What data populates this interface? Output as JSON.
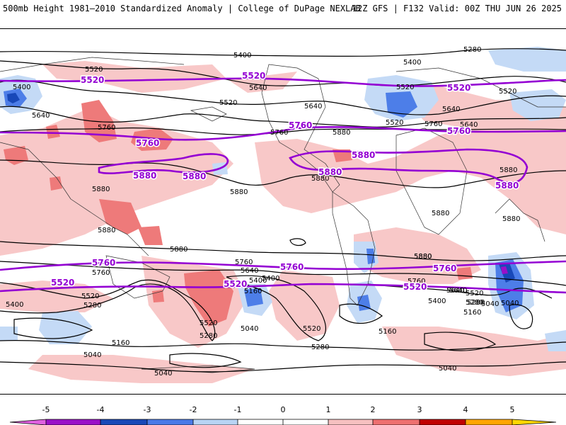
{
  "header": {
    "title": "500mb Height 1981–2010 Standardized Anomaly | College of DuPage NEXLAB",
    "run_info": "12Z GFS | F132 Valid: 00Z THU JUN 26 2025"
  },
  "map": {
    "black_contour_labels": [
      "5400",
      "5520",
      "5400",
      "5640",
      "5520",
      "5640",
      "5760",
      "5880",
      "5880",
      "5880",
      "5880",
      "5880",
      "5280",
      "5400",
      "5520",
      "5640",
      "5520",
      "5640",
      "5760",
      "5880",
      "5880",
      "5880",
      "5880",
      "5760",
      "5640",
      "5520",
      "5400",
      "5280",
      "5160",
      "5040",
      "5280",
      "5400",
      "5520",
      "5640",
      "5760",
      "5160",
      "5280",
      "5040",
      "5160",
      "5520",
      "5280",
      "5040",
      "5040",
      "5400",
      "5520",
      "5640",
      "5760",
      "5880",
      "5040",
      "5160",
      "5280",
      "5400",
      "5520",
      "5640",
      "5760",
      "5880",
      "5040"
    ],
    "purple_contour_labels": {
      "v5520": "5520",
      "v5760": "5760",
      "v5880": "5880"
    }
  },
  "colorbar": {
    "labels": [
      "-5",
      "-4",
      "-3",
      "-2",
      "-1",
      "0",
      "1",
      "2",
      "3",
      "4",
      "5"
    ],
    "colors": [
      "#e060e0",
      "#9a10c8",
      "#1848b8",
      "#4a7ae8",
      "#b8d4f4",
      "#ffffff",
      "#ffffff",
      "#f6c0c0",
      "#ee7070",
      "#c00000",
      "#ffa500",
      "#ffd700"
    ]
  }
}
